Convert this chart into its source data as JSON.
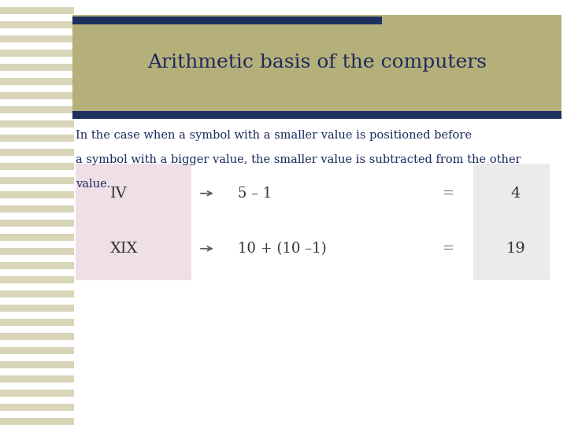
{
  "title": "Arithmetic basis of the computers",
  "title_color": "#1C2B5E",
  "title_fontsize": 18,
  "background_color": "#FFFFFF",
  "header_bg_color": "#B5B07A",
  "header_bar_color": "#1C3160",
  "body_text_line1": "In the case when a symbol with a smaller value is positioned before",
  "body_text_line2": "a symbol with a bigger value, the smaller value is subtracted from the other",
  "body_text_line3": "value.",
  "body_text_color": "#1C2B5E",
  "body_fontsize": 10.5,
  "stripe_color_light": "#D8D5B8",
  "stripe_color_dark": "#FFFFFF",
  "row1_roman": "IV",
  "row1_expr": "5 – 1",
  "row1_result": "4",
  "row2_roman": "XIX",
  "row2_expr": "10 + (10 –1)",
  "row2_result": "19",
  "roman_box_color": "#EFE0E8",
  "result_box_color": "#EBEBEB",
  "table_text_color": "#333333",
  "roman_fontsize": 14,
  "expr_fontsize": 13,
  "result_fontsize": 14,
  "arrow_color": "#555555",
  "equals_color": "#555555"
}
